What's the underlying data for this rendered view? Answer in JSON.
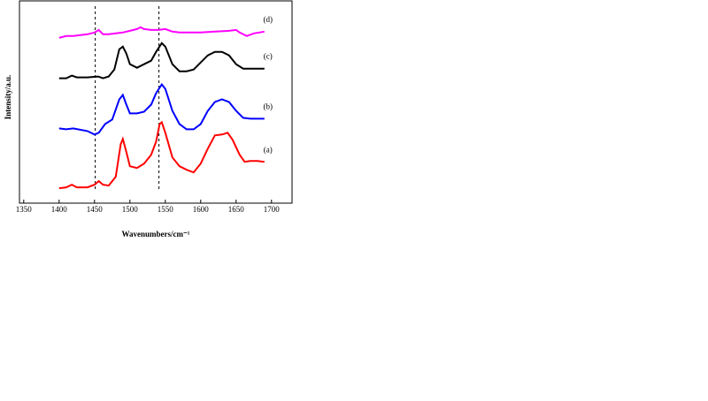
{
  "chart_data": {
    "type": "line",
    "x_label": "Wavenumbers/cm⁻¹",
    "y_label": "Intensity/a.u.",
    "xlim": [
      1344,
      1729
    ],
    "xticks": [
      1350,
      1400,
      1450,
      1500,
      1550,
      1600,
      1650,
      1700
    ],
    "ylim": [
      0,
      230
    ],
    "vlines": [
      1451,
      1541
    ],
    "series": [
      {
        "name": "(a)",
        "color": "#ff0000",
        "x": [
          1400,
          1410,
          1418,
          1425,
          1440,
          1450,
          1456,
          1462,
          1470,
          1480,
          1487,
          1490,
          1495,
          1500,
          1510,
          1520,
          1530,
          1537,
          1542,
          1545,
          1550,
          1560,
          1570,
          1580,
          1590,
          1600,
          1610,
          1620,
          1630,
          1638,
          1645,
          1655,
          1662,
          1670,
          1680,
          1690
        ],
        "values": [
          17,
          18,
          21,
          18,
          18,
          21,
          25,
          21,
          20,
          30,
          67,
          73,
          58,
          42,
          40,
          45,
          55,
          70,
          90,
          92,
          80,
          52,
          42,
          38,
          35,
          45,
          62,
          77,
          78,
          80,
          72,
          55,
          47,
          48,
          48,
          47
        ]
      },
      {
        "name": "(b)",
        "color": "#0000ff",
        "x": [
          1400,
          1410,
          1420,
          1440,
          1450,
          1456,
          1465,
          1475,
          1485,
          1490,
          1495,
          1500,
          1510,
          1520,
          1530,
          1537,
          1545,
          1550,
          1560,
          1570,
          1580,
          1590,
          1600,
          1610,
          1620,
          1630,
          1640,
          1650,
          1660,
          1670,
          1680,
          1690
        ],
        "values": [
          85,
          84,
          85,
          82,
          78,
          80,
          90,
          95,
          118,
          123,
          112,
          102,
          102,
          104,
          112,
          125,
          135,
          130,
          105,
          90,
          84,
          84,
          90,
          105,
          115,
          118,
          115,
          105,
          97,
          96,
          96,
          96
        ]
      },
      {
        "name": "(c)",
        "color": "#000000",
        "x": [
          1400,
          1410,
          1418,
          1425,
          1440,
          1455,
          1462,
          1470,
          1478,
          1485,
          1490,
          1495,
          1500,
          1510,
          1520,
          1530,
          1537,
          1545,
          1550,
          1560,
          1570,
          1580,
          1590,
          1600,
          1610,
          1620,
          1630,
          1640,
          1650,
          1660,
          1670,
          1690
        ],
        "values": [
          142,
          142,
          145,
          143,
          143,
          144,
          142,
          144,
          152,
          175,
          178,
          170,
          158,
          154,
          158,
          162,
          172,
          182,
          178,
          158,
          150,
          150,
          152,
          160,
          168,
          172,
          172,
          168,
          158,
          153,
          153,
          153
        ]
      },
      {
        "name": "(d)",
        "color": "#ff00ff",
        "x": [
          1400,
          1410,
          1420,
          1440,
          1450,
          1456,
          1462,
          1470,
          1480,
          1490,
          1500,
          1510,
          1515,
          1520,
          1530,
          1540,
          1550,
          1560,
          1570,
          1580,
          1600,
          1620,
          1640,
          1650,
          1655,
          1665,
          1675,
          1690
        ],
        "values": [
          188,
          190,
          190,
          192,
          194,
          197,
          192,
          192,
          193,
          194,
          196,
          198,
          200,
          198,
          197,
          197,
          198,
          195,
          194,
          194,
          194,
          195,
          196,
          197,
          194,
          190,
          193,
          195
        ]
      }
    ]
  }
}
